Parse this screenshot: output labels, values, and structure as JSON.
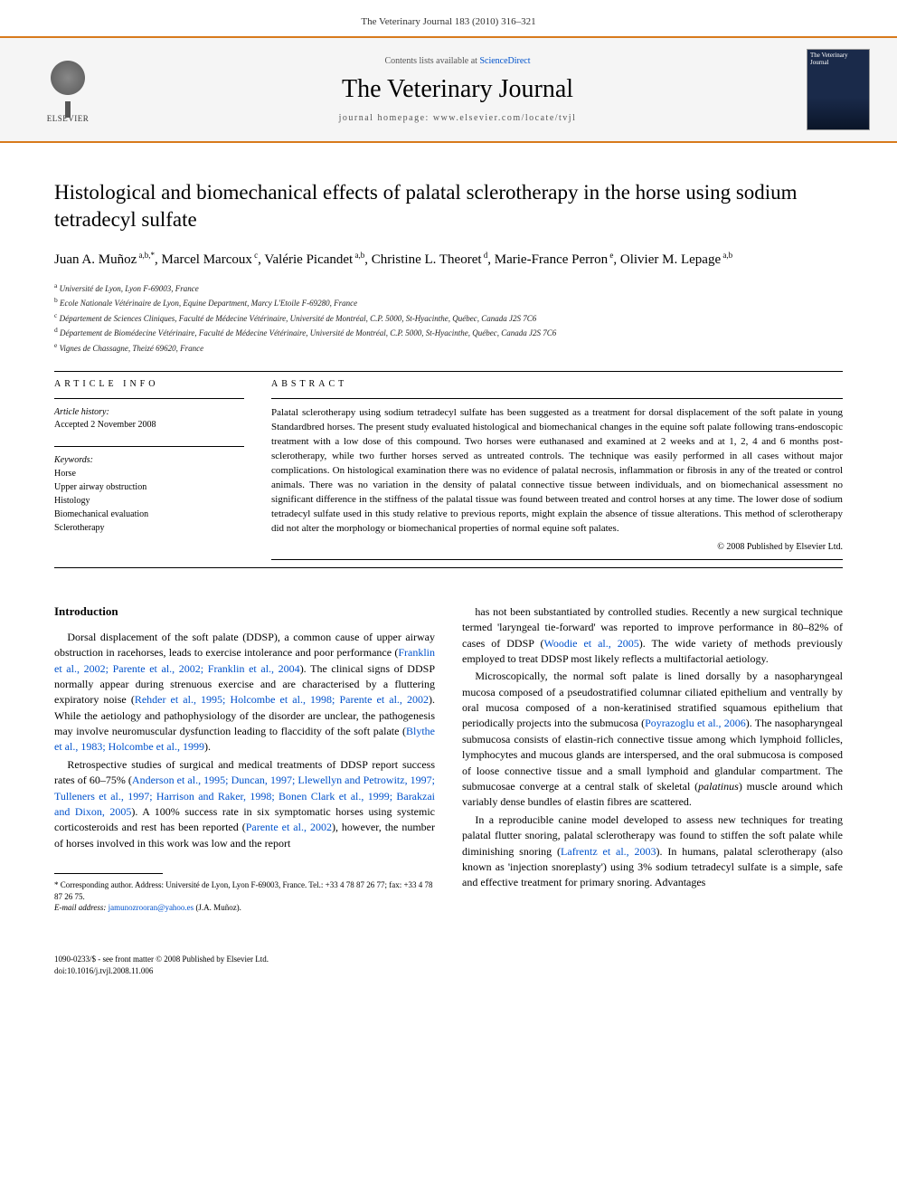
{
  "header": {
    "citation": "The Veterinary Journal 183 (2010) 316–321"
  },
  "banner": {
    "contents_prefix": "Contents lists available at ",
    "contents_link_text": "ScienceDirect",
    "journal_name": "The Veterinary Journal",
    "homepage_prefix": "journal homepage: ",
    "homepage_url": "www.elsevier.com/locate/tvjl",
    "publisher_label": "ELSEVIER",
    "cover_title": "The Veterinary Journal"
  },
  "article": {
    "title": "Histological and biomechanical effects of palatal sclerotherapy in the horse using sodium tetradecyl sulfate",
    "authors_html": "Juan A. Muñoz<sup> a,b,*</sup>, Marcel Marcoux<sup> c</sup>, Valérie Picandet<sup> a,b</sup>, Christine L. Theoret<sup> d</sup>, Marie-France Perron<sup> e</sup>, Olivier M. Lepage<sup> a,b</sup>",
    "affiliations": [
      "<sup>a</sup> Université de Lyon, Lyon F-69003, France",
      "<sup>b</sup> Ecole Nationale Vétérinaire de Lyon, Equine Department, Marcy L'Etoile F-69280, France",
      "<sup>c</sup> Département de Sciences Cliniques, Faculté de Médecine Vétérinaire, Université de Montréal, C.P. 5000, St-Hyacinthe, Québec, Canada J2S 7C6",
      "<sup>d</sup> Département de Biomédecine Vétérinaire, Faculté de Médecine Vétérinaire, Université de Montréal, C.P. 5000, St-Hyacinthe, Québec, Canada J2S 7C6",
      "<sup>e</sup> Vignes de Chassagne, Theizé 69620, France"
    ]
  },
  "info": {
    "section_head": "ARTICLE INFO",
    "history_label": "Article history:",
    "history_value": "Accepted 2 November 2008",
    "keywords_label": "Keywords:",
    "keywords": [
      "Horse",
      "Upper airway obstruction",
      "Histology",
      "Biomechanical evaluation",
      "Sclerotherapy"
    ]
  },
  "abstract": {
    "section_head": "ABSTRACT",
    "text": "Palatal sclerotherapy using sodium tetradecyl sulfate has been suggested as a treatment for dorsal displacement of the soft palate in young Standardbred horses. The present study evaluated histological and biomechanical changes in the equine soft palate following trans-endoscopic treatment with a low dose of this compound. Two horses were euthanased and examined at 2 weeks and at 1, 2, 4 and 6 months post-sclerotherapy, while two further horses served as untreated controls. The technique was easily performed in all cases without major complications. On histological examination there was no evidence of palatal necrosis, inflammation or fibrosis in any of the treated or control animals. There was no variation in the density of palatal connective tissue between individuals, and on biomechanical assessment no significant difference in the stiffness of the palatal tissue was found between treated and control horses at any time. The lower dose of sodium tetradecyl sulfate used in this study relative to previous reports, might explain the absence of tissue alterations. This method of sclerotherapy did not alter the morphology or biomechanical properties of normal equine soft palates.",
    "copyright": "© 2008 Published by Elsevier Ltd."
  },
  "body": {
    "intro_heading": "Introduction",
    "left_paragraphs": [
      "Dorsal displacement of the soft palate (DDSP), a common cause of upper airway obstruction in racehorses, leads to exercise intolerance and poor performance (<a class='cite' href='#'>Franklin et al., 2002; Parente et al., 2002; Franklin et al., 2004</a>). The clinical signs of DDSP normally appear during strenuous exercise and are characterised by a fluttering expiratory noise (<a class='cite' href='#'>Rehder et al., 1995; Holcombe et al., 1998; Parente et al., 2002</a>). While the aetiology and pathophysiology of the disorder are unclear, the pathogenesis may involve neuromuscular dysfunction leading to flaccidity of the soft palate (<a class='cite' href='#'>Blythe et al., 1983; Holcombe et al., 1999</a>).",
      "Retrospective studies of surgical and medical treatments of DDSP report success rates of 60–75% (<a class='cite' href='#'>Anderson et al., 1995; Duncan, 1997; Llewellyn and Petrowitz, 1997; Tulleners et al., 1997; Harrison and Raker, 1998; Bonen Clark et al., 1999; Barakzai and Dixon, 2005</a>). A 100% success rate in six symptomatic horses using systemic corticosteroids and rest has been reported (<a class='cite' href='#'>Parente et al., 2002</a>), however, the number of horses involved in this work was low and the report"
    ],
    "right_paragraphs": [
      "has not been substantiated by controlled studies. Recently a new surgical technique termed 'laryngeal tie-forward' was reported to improve performance in 80–82% of cases of DDSP (<a class='cite' href='#'>Woodie et al., 2005</a>). The wide variety of methods previously employed to treat DDSP most likely reflects a multifactorial aetiology.",
      "Microscopically, the normal soft palate is lined dorsally by a nasopharyngeal mucosa composed of a pseudostratified columnar ciliated epithelium and ventrally by oral mucosa composed of a non-keratinised stratified squamous epithelium that periodically projects into the submucosa (<a class='cite' href='#'>Poyrazoglu et al., 2006</a>). The nasopharyngeal submucosa consists of elastin-rich connective tissue among which lymphoid follicles, lymphocytes and mucous glands are interspersed, and the oral submucosa is composed of loose connective tissue and a small lymphoid and glandular compartment. The submucosae converge at a central stalk of skeletal (<i>palatinus</i>) muscle around which variably dense bundles of elastin fibres are scattered.",
      "In a reproducible canine model developed to assess new techniques for treating palatal flutter snoring, palatal sclerotherapy was found to stiffen the soft palate while diminishing snoring (<a class='cite' href='#'>Lafrentz et al., 2003</a>). In humans, palatal sclerotherapy (also known as 'injection snoreplasty') using 3% sodium tetradecyl sulfate is a simple, safe and effective treatment for primary snoring. Advantages"
    ]
  },
  "footnote": {
    "corresponding": "* Corresponding author. Address: Université de Lyon, Lyon F-69003, France. Tel.: +33 4 78 87 26 77; fax: +33 4 78 87 26 75.",
    "email_label": "E-mail address: ",
    "email": "jamunozrooran@yahoo.es",
    "email_suffix": " (J.A. Muñoz)."
  },
  "footer": {
    "line1": "1090-0233/$ - see front matter © 2008 Published by Elsevier Ltd.",
    "line2": "doi:10.1016/j.tvjl.2008.11.006"
  },
  "colors": {
    "accent_orange": "#d87a1c",
    "link_blue": "#0052cc",
    "cover_bg": "#1a2a4a"
  }
}
